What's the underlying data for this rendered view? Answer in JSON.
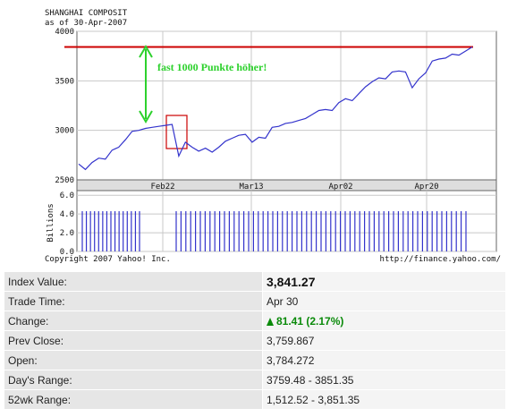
{
  "chart_data": [
    {
      "type": "line",
      "title": "SHANGHAI COMPOSIT",
      "subtitle": "as of 30-Apr-2007",
      "x_ticks": [
        "Feb22",
        "Mar13",
        "Apr02",
        "Apr20"
      ],
      "y_ticks": [
        "4000",
        "3500",
        "3000",
        "2500"
      ],
      "ylim": [
        2500,
        4000
      ],
      "grid": true,
      "series": [
        {
          "x": [
            0,
            1,
            2,
            3,
            4,
            5,
            6,
            7,
            8,
            9,
            10,
            11,
            12,
            13,
            14,
            15,
            16,
            17,
            18,
            19,
            20,
            21,
            22,
            23,
            24,
            25,
            26,
            27,
            28,
            29,
            30,
            31,
            32,
            33,
            34,
            35,
            36,
            37,
            38,
            39,
            40,
            41,
            42,
            43,
            44,
            45,
            46,
            47,
            48,
            49,
            50,
            51,
            52,
            53,
            54,
            55,
            56,
            57,
            58,
            59
          ],
          "values": [
            2660,
            2605,
            2675,
            2720,
            2710,
            2800,
            2830,
            2905,
            2990,
            3000,
            3020,
            3030,
            3040,
            3050,
            3060,
            2740,
            2880,
            2830,
            2790,
            2820,
            2780,
            2830,
            2890,
            2920,
            2950,
            2960,
            2880,
            2930,
            2920,
            3030,
            3040,
            3070,
            3080,
            3100,
            3120,
            3160,
            3200,
            3210,
            3200,
            3280,
            3320,
            3300,
            3370,
            3440,
            3490,
            3530,
            3520,
            3590,
            3600,
            3590,
            3430,
            3520,
            3580,
            3700,
            3720,
            3730,
            3770,
            3760,
            3800,
            3842
          ]
        }
      ],
      "annotation": "fast 1000 Punkte höher!",
      "reference_level": 3842
    },
    {
      "type": "bar",
      "ylabel": "Billions",
      "y_ticks": [
        "6.0",
        "4.0",
        "2.0",
        "0.0"
      ],
      "ylim": [
        0,
        6.5
      ],
      "values": [
        4.3,
        4.3,
        4.3,
        4.3,
        4.3,
        4.3,
        4.3,
        4.3,
        4.3,
        4.3,
        4.3,
        4.3,
        4.3,
        4.3,
        4.3,
        4.3,
        4.3,
        4.3,
        4.3,
        4.3,
        4.3,
        4.3,
        4.3,
        4.3,
        4.3,
        4.3,
        4.3,
        4.3,
        4.3,
        4.3,
        4.3,
        4.3,
        4.3,
        4.3,
        4.3,
        4.3,
        4.3,
        4.3,
        4.3,
        4.3,
        4.3,
        4.3,
        4.3,
        4.3,
        4.3,
        4.3,
        4.3,
        4.3,
        4.3,
        4.3,
        4.3,
        4.3,
        4.3,
        4.3,
        4.3,
        4.3,
        4.3,
        4.3,
        4.3,
        4.3,
        4.3,
        4.3,
        4.3,
        4.3,
        4.3,
        4.3,
        4.3,
        4.3,
        4.3,
        4.3,
        4.3,
        4.3,
        4.3,
        4.3,
        4.3,
        4.3
      ]
    }
  ],
  "footer": {
    "copyright": "Copyright 2007 Yahoo! Inc.",
    "url": "http://finance.yahoo.com/"
  },
  "stats": [
    {
      "label": "Index Value:",
      "value": "3,841.27"
    },
    {
      "label": "Trade Time:",
      "value": "Apr 30"
    },
    {
      "label": "Change:",
      "value": "81.41 (2.17%)"
    },
    {
      "label": "Prev Close:",
      "value": "3,759.867"
    },
    {
      "label": "Open:",
      "value": "3,784.272"
    },
    {
      "label": "Day's Range:",
      "value": "3759.48 - 3851.35"
    },
    {
      "label": "52wk Range:",
      "value": "1,512.52 - 3,851.35"
    }
  ],
  "colors": {
    "price_line": "#3333cc",
    "reference_line": "#cc0000",
    "annotation": "#2dd12d",
    "highlight_box": "#cc0000",
    "volume_bar": "#3333cc",
    "change_up": "#0a8a0a"
  },
  "icons": {
    "change": "up-arrow-icon"
  }
}
